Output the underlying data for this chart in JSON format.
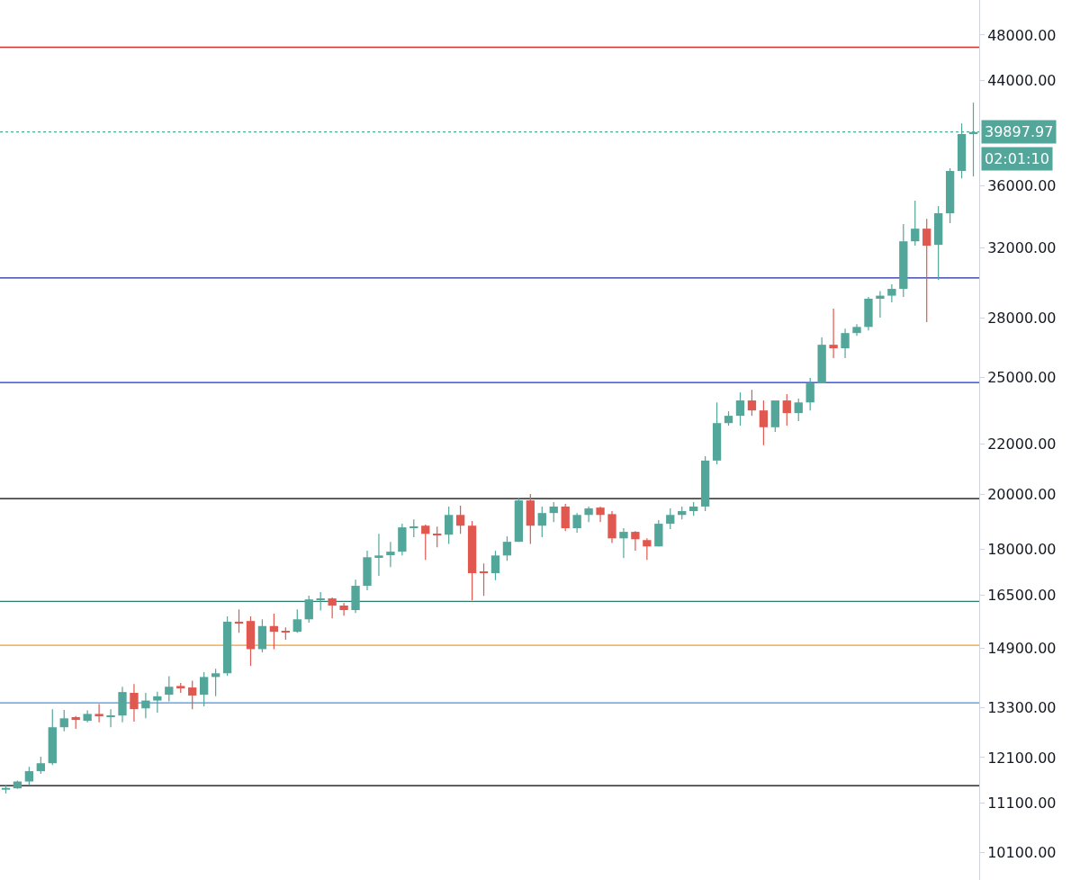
{
  "chart_data": {
    "type": "candlestick",
    "categories": [
      null,
      null,
      null,
      null,
      null,
      null,
      null,
      null,
      null,
      null,
      null,
      null,
      null,
      null,
      null,
      null,
      null,
      null,
      null,
      null,
      null,
      null,
      null,
      null,
      null,
      null,
      null,
      null,
      null,
      null,
      null,
      null,
      null,
      null,
      null,
      null,
      null,
      null,
      null,
      null,
      null,
      null,
      null,
      null,
      null,
      null,
      null,
      null,
      null,
      null,
      null,
      null,
      null,
      null,
      null,
      null,
      null,
      null,
      null,
      null,
      null,
      null,
      null,
      null,
      null,
      null,
      null,
      null,
      null,
      null,
      null,
      null,
      null,
      null,
      null,
      null,
      null,
      null,
      null,
      null,
      null,
      null,
      null,
      null
    ],
    "ohlc": [
      [
        11380,
        11480,
        11300,
        11420
      ],
      [
        11410,
        11580,
        11400,
        11560
      ],
      [
        11560,
        11890,
        11480,
        11790
      ],
      [
        11790,
        12120,
        11730,
        11970
      ],
      [
        11970,
        13270,
        11930,
        12820
      ],
      [
        12820,
        13250,
        12720,
        13040
      ],
      [
        13070,
        13100,
        12780,
        13000
      ],
      [
        12980,
        13240,
        12940,
        13150
      ],
      [
        13150,
        13400,
        12940,
        13090
      ],
      [
        13090,
        13270,
        12820,
        13110
      ],
      [
        13110,
        13850,
        12940,
        13710
      ],
      [
        13690,
        13920,
        12960,
        13270
      ],
      [
        13290,
        13690,
        13040,
        13490
      ],
      [
        13490,
        13720,
        13180,
        13600
      ],
      [
        13640,
        14130,
        13470,
        13850
      ],
      [
        13870,
        13950,
        13690,
        13830
      ],
      [
        13830,
        14010,
        13270,
        13620
      ],
      [
        13640,
        14240,
        13340,
        14110
      ],
      [
        14110,
        14330,
        13600,
        14210
      ],
      [
        14210,
        15840,
        14140,
        15680
      ],
      [
        15680,
        16050,
        15350,
        15650
      ],
      [
        15700,
        15840,
        14410,
        14880
      ],
      [
        14880,
        15750,
        14790,
        15550
      ],
      [
        15550,
        15920,
        14880,
        15380
      ],
      [
        15400,
        15510,
        15150,
        15380
      ],
      [
        15380,
        16050,
        15350,
        15750
      ],
      [
        15750,
        16480,
        15650,
        16360
      ],
      [
        16360,
        16590,
        16020,
        16390
      ],
      [
        16390,
        16420,
        15780,
        16170
      ],
      [
        16170,
        16250,
        15860,
        16030
      ],
      [
        16030,
        16990,
        15940,
        16790
      ],
      [
        16790,
        17950,
        16650,
        17730
      ],
      [
        17730,
        18540,
        17110,
        17790
      ],
      [
        17800,
        18260,
        17400,
        17920
      ],
      [
        17920,
        18900,
        17790,
        18770
      ],
      [
        18770,
        19060,
        18420,
        18800
      ],
      [
        18830,
        18870,
        17640,
        18540
      ],
      [
        18540,
        18800,
        18070,
        18510
      ],
      [
        18510,
        19530,
        18190,
        19220
      ],
      [
        19220,
        19560,
        18540,
        18830
      ],
      [
        18830,
        19000,
        16330,
        17200
      ],
      [
        17230,
        17520,
        16470,
        17200
      ],
      [
        17200,
        17950,
        16970,
        17790
      ],
      [
        17790,
        18450,
        17610,
        18260
      ],
      [
        18260,
        19870,
        18260,
        19760
      ],
      [
        19760,
        20000,
        18190,
        18830
      ],
      [
        18830,
        19530,
        18420,
        19290
      ],
      [
        19290,
        19700,
        18960,
        19530
      ],
      [
        19530,
        19630,
        18640,
        18740
      ],
      [
        18740,
        19290,
        18580,
        19220
      ],
      [
        19220,
        19530,
        18960,
        19460
      ],
      [
        19490,
        19530,
        18960,
        19220
      ],
      [
        19250,
        19360,
        18220,
        18380
      ],
      [
        18380,
        18740,
        17700,
        18610
      ],
      [
        18610,
        18640,
        17950,
        18350
      ],
      [
        18320,
        18380,
        17640,
        18100
      ],
      [
        18100,
        19030,
        18100,
        18900
      ],
      [
        18900,
        19460,
        18710,
        19220
      ],
      [
        19220,
        19530,
        19060,
        19360
      ],
      [
        19360,
        19700,
        19190,
        19530
      ],
      [
        19530,
        21500,
        19360,
        21320
      ],
      [
        21320,
        23820,
        21170,
        22900
      ],
      [
        22900,
        23420,
        22790,
        23220
      ],
      [
        23220,
        24280,
        22790,
        23910
      ],
      [
        23910,
        24400,
        23220,
        23460
      ],
      [
        23460,
        23910,
        21960,
        22720
      ],
      [
        22720,
        23910,
        22520,
        23910
      ],
      [
        23910,
        24200,
        22790,
        23340
      ],
      [
        23340,
        23990,
        22990,
        23820
      ],
      [
        23820,
        24960,
        23460,
        24700
      ],
      [
        24700,
        26960,
        24700,
        26590
      ],
      [
        26590,
        28490,
        25920,
        26410
      ],
      [
        26410,
        27420,
        25920,
        27190
      ],
      [
        27190,
        27660,
        27050,
        27510
      ],
      [
        27510,
        29130,
        27330,
        29030
      ],
      [
        29030,
        29450,
        28000,
        29200
      ],
      [
        29200,
        29840,
        28830,
        29580
      ],
      [
        29580,
        33470,
        29130,
        32390
      ],
      [
        32390,
        35000,
        32120,
        33180
      ],
      [
        33180,
        33810,
        27760,
        32120
      ],
      [
        32170,
        34640,
        30090,
        34170
      ],
      [
        34170,
        37230,
        33530,
        37040
      ],
      [
        37040,
        40560,
        36520,
        39740
      ],
      [
        39740,
        42190,
        36650,
        39897.97
      ]
    ],
    "colors": [
      "#53a69a",
      "#53a69a",
      "#53a69a",
      "#53a69a",
      "#53a69a",
      "#53a69a",
      "#e0584f",
      "#53a69a",
      "#e0584f",
      "#53a69a",
      "#53a69a",
      "#e0584f",
      "#53a69a",
      "#53a69a",
      "#53a69a",
      "#e0584f",
      "#e0584f",
      "#53a69a",
      "#53a69a",
      "#53a69a",
      "#e0584f",
      "#e0584f",
      "#53a69a",
      "#e0584f",
      "#e0584f",
      "#53a69a",
      "#53a69a",
      "#53a69a",
      "#e0584f",
      "#e0584f",
      "#53a69a",
      "#53a69a",
      "#53a69a",
      "#53a69a",
      "#53a69a",
      "#53a69a",
      "#e0584f",
      "#e0584f",
      "#53a69a",
      "#e0584f",
      "#e0584f",
      "#e0584f",
      "#53a69a",
      "#53a69a",
      "#53a69a",
      "#e0584f",
      "#53a69a",
      "#53a69a",
      "#e0584f",
      "#53a69a",
      "#53a69a",
      "#e0584f",
      "#e0584f",
      "#53a69a",
      "#e0584f",
      "#e0584f",
      "#53a69a",
      "#53a69a",
      "#53a69a",
      "#53a69a",
      "#53a69a",
      "#53a69a",
      "#53a69a",
      "#53a69a",
      "#e0584f",
      "#e0584f",
      "#53a69a",
      "#e0584f",
      "#53a69a",
      "#53a69a",
      "#53a69a",
      "#e0584f",
      "#53a69a",
      "#53a69a",
      "#53a69a",
      "#53a69a",
      "#53a69a",
      "#53a69a",
      "#53a69a",
      "#e0584f",
      "#53a69a",
      "#53a69a",
      "#53a69a",
      "#53a69a"
    ],
    "log": true,
    "ylim": [
      9580,
      51320
    ],
    "yticks": [
      {
        "value": 10100,
        "label": "10100.00"
      },
      {
        "value": 11100,
        "label": "11100.00"
      },
      {
        "value": 12100,
        "label": "12100.00"
      },
      {
        "value": 13300,
        "label": "13300.00"
      },
      {
        "value": 14900,
        "label": "14900.00"
      },
      {
        "value": 16500,
        "label": "16500.00"
      },
      {
        "value": 18000,
        "label": "18000.00"
      },
      {
        "value": 20000,
        "label": "20000.00"
      },
      {
        "value": 22000,
        "label": "22000.00"
      },
      {
        "value": 25000,
        "label": "25000.00"
      },
      {
        "value": 28000,
        "label": "28000.00"
      },
      {
        "value": 32000,
        "label": "32000.00"
      },
      {
        "value": 36000,
        "label": "36000.00"
      },
      {
        "value": 44000,
        "label": "44000.00"
      },
      {
        "value": 48000,
        "label": "48000.00"
      }
    ],
    "tick_labels": "y",
    "ref_lines": [
      {
        "axis": "y",
        "value": 46900,
        "color": "#d0342c"
      },
      {
        "axis": "y",
        "value": 39897.97,
        "label": "39897.97",
        "color": "#53a69a",
        "line_style": "dotted"
      },
      {
        "axis": "y",
        "value": 30200,
        "color": "#1b2a9c"
      },
      {
        "axis": "y",
        "value": 24740,
        "color": "#1530e0"
      },
      {
        "axis": "y",
        "value": 19830,
        "color": "#000000"
      },
      {
        "axis": "y",
        "value": 16300,
        "color": "#2e7d6e"
      },
      {
        "axis": "y",
        "value": 14990,
        "color": "#f39c2b"
      },
      {
        "axis": "y",
        "value": 13430,
        "color": "#4a90e2"
      },
      {
        "axis": "y",
        "value": 11470,
        "color": "#000000"
      }
    ],
    "annotations": [
      "02:01:10"
    ]
  }
}
